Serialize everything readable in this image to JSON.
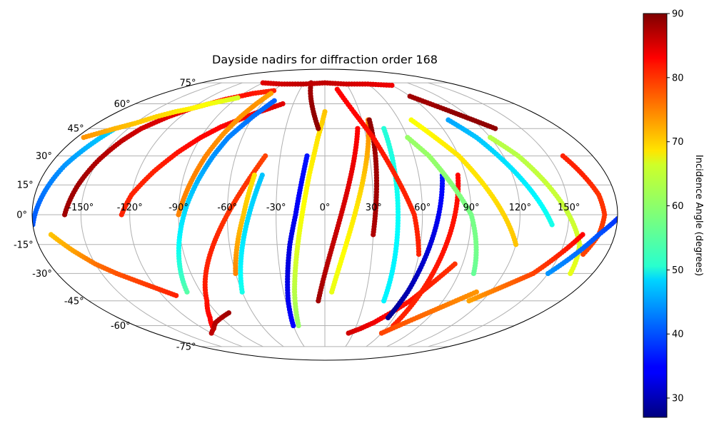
{
  "chart_data": {
    "type": "scatter",
    "projection": "mollweide",
    "title": "Dayside nadirs for diffraction order 168",
    "colorbar_label": "Incidence Angle (degrees)",
    "colorbar_range": [
      27,
      90
    ],
    "colorbar_ticks": [
      "30",
      "40",
      "50",
      "60",
      "70",
      "80",
      "90"
    ],
    "colormap": "jet",
    "lon_ticks": [
      "-150°",
      "-120°",
      "-90°",
      "-60°",
      "-30°",
      "0°",
      "30°",
      "60°",
      "90°",
      "120°",
      "150°"
    ],
    "lat_ticks": [
      "75°",
      "60°",
      "45°",
      "30°",
      "15°",
      "0°",
      "-15°",
      "-30°",
      "-45°",
      "-60°",
      "-75°"
    ],
    "grid": true,
    "tracks": [
      {
        "lon": [
          -170,
          -160,
          -150,
          -140,
          -130,
          -120,
          -110
        ],
        "lat": [
          -10,
          -18,
          -25,
          -30,
          -34,
          -38,
          -42
        ],
        "inc": [
          70,
          72,
          75,
          77,
          78,
          79,
          80
        ]
      },
      {
        "lon": [
          -180,
          -175,
          -170,
          -165,
          -160
        ],
        "lat": [
          -5,
          10,
          25,
          35,
          45
        ],
        "inc": [
          40,
          42,
          44,
          46,
          48
        ]
      },
      {
        "lon": [
          -160,
          -155,
          -150,
          -145,
          -140,
          -130,
          -120,
          -110,
          -100,
          -90,
          -80,
          -70,
          -60
        ],
        "lat": [
          0,
          15,
          28,
          38,
          45,
          52,
          57,
          60,
          63,
          65,
          67,
          68,
          69
        ],
        "inc": [
          88,
          88,
          87,
          86,
          85,
          84,
          83,
          82,
          82,
          81,
          81,
          80,
          80
        ]
      },
      {
        "lon": [
          -125,
          -120,
          -110,
          -100,
          -90,
          -80,
          -70,
          -60,
          -50,
          -40
        ],
        "lat": [
          0,
          10,
          22,
          32,
          40,
          46,
          50,
          54,
          57,
          60
        ],
        "inc": [
          80,
          80,
          80,
          81,
          82,
          82,
          83,
          83,
          84,
          84
        ]
      },
      {
        "lon": [
          -175,
          -160,
          -150,
          -140,
          -130,
          -120,
          -110,
          -100,
          -90
        ],
        "lat": [
          40,
          45,
          48,
          52,
          55,
          57,
          60,
          62,
          64
        ],
        "inc": [
          73,
          71,
          70,
          69,
          68,
          67,
          66,
          65,
          64
        ]
      },
      {
        "lon": [
          -100,
          -95,
          -90,
          -85,
          -80,
          -75,
          -70,
          -60,
          -50
        ],
        "lat": [
          -40,
          -25,
          -10,
          5,
          18,
          30,
          40,
          52,
          62
        ],
        "inc": [
          56,
          53,
          50,
          48,
          46,
          44,
          43,
          42,
          41
        ]
      },
      {
        "lon": [
          -110,
          -100,
          -90,
          -80,
          -70,
          -60,
          -50,
          -40
        ],
        "lat": [
          -62,
          -55,
          -45,
          -30,
          -15,
          0,
          15,
          30
        ],
        "inc": [
          82,
          82,
          81,
          80,
          80,
          79,
          79,
          78
        ]
      },
      {
        "lon": [
          -90,
          -85,
          -80,
          -75,
          -70,
          -65,
          -60
        ],
        "lat": [
          0,
          15,
          30,
          42,
          52,
          60,
          67
        ],
        "inc": [
          74,
          74,
          74,
          73,
          73,
          73,
          72
        ]
      },
      {
        "lon": [
          -60,
          -55,
          -50,
          -45
        ],
        "lat": [
          -30,
          -15,
          0,
          20
        ],
        "inc": [
          74,
          72,
          70,
          68
        ]
      },
      {
        "lon": [
          -60,
          -55,
          -50,
          -45,
          -40
        ],
        "lat": [
          -40,
          -25,
          -10,
          5,
          20
        ],
        "inc": [
          52,
          50,
          49,
          48,
          47
        ]
      },
      {
        "lon": [
          -30,
          -28,
          -25,
          -22,
          -18,
          -15,
          -12
        ],
        "lat": [
          -60,
          -45,
          -30,
          -15,
          0,
          15,
          30
        ],
        "inc": [
          35,
          34,
          33,
          33,
          34,
          35,
          36
        ]
      },
      {
        "lon": [
          -25,
          -22,
          -18,
          -14,
          -10,
          -5,
          0
        ],
        "lat": [
          -60,
          -40,
          -20,
          0,
          20,
          40,
          55
        ],
        "inc": [
          60,
          62,
          64,
          66,
          67,
          68,
          70
        ]
      },
      {
        "lon": [
          -20,
          -15,
          -10,
          -5
        ],
        "lat": [
          75,
          65,
          55,
          45
        ],
        "inc": [
          88,
          88,
          89,
          89
        ]
      },
      {
        "lon": [
          -5,
          0,
          5,
          10,
          15,
          20,
          25
        ],
        "lat": [
          -45,
          -30,
          -15,
          0,
          15,
          30,
          45
        ],
        "inc": [
          88,
          87,
          86,
          85,
          84,
          83,
          82
        ]
      },
      {
        "lon": [
          5,
          10,
          15,
          20,
          25,
          30,
          35
        ],
        "lat": [
          -40,
          -25,
          -10,
          5,
          20,
          35,
          50
        ],
        "inc": [
          65,
          66,
          67,
          68,
          70,
          72,
          74
        ]
      },
      {
        "lon": [
          30,
          32,
          34,
          36
        ],
        "lat": [
          -10,
          10,
          30,
          50
        ],
        "inc": [
          87,
          88,
          88,
          89
        ]
      },
      {
        "lon": [
          45,
          45,
          45,
          45,
          45
        ],
        "lat": [
          -45,
          -20,
          0,
          20,
          45
        ],
        "inc": [
          50,
          50,
          51,
          52,
          53
        ]
      },
      {
        "lon": [
          15,
          25,
          35,
          45,
          55,
          60
        ],
        "lat": [
          70,
          55,
          40,
          20,
          0,
          -20
        ],
        "inc": [
          82,
          82,
          81,
          80,
          80,
          80
        ]
      },
      {
        "lon": [
          25,
          35,
          45,
          55,
          65,
          75,
          85
        ],
        "lat": [
          -65,
          -62,
          -58,
          -52,
          -45,
          -35,
          -25
        ],
        "inc": [
          85,
          84,
          83,
          82,
          81,
          80,
          79
        ]
      },
      {
        "lon": [
          55,
          60,
          65,
          70,
          75
        ],
        "lat": [
          -55,
          -40,
          -20,
          0,
          20
        ],
        "inc": [
          28,
          30,
          32,
          34,
          36
        ]
      },
      {
        "lon": [
          65,
          70,
          75,
          80,
          85
        ],
        "lat": [
          -60,
          -40,
          -20,
          0,
          20
        ],
        "inc": [
          80,
          80,
          81,
          81,
          82
        ]
      },
      {
        "lon": [
          60,
          70,
          80,
          90,
          95,
          100
        ],
        "lat": [
          40,
          30,
          15,
          0,
          -15,
          -30
        ],
        "inc": [
          60,
          60,
          59,
          58,
          58,
          57
        ]
      },
      {
        "lon": [
          70,
          80,
          90,
          100,
          110,
          120
        ],
        "lat": [
          50,
          40,
          30,
          15,
          0,
          -15
        ],
        "inc": [
          66,
          67,
          68,
          68,
          69,
          70
        ]
      },
      {
        "lon": [
          100,
          110,
          120,
          130,
          140
        ],
        "lat": [
          50,
          40,
          25,
          10,
          -5
        ],
        "inc": [
          45,
          47,
          49,
          50,
          52
        ]
      },
      {
        "lon": [
          120,
          130,
          140,
          150,
          160,
          165
        ],
        "lat": [
          40,
          30,
          15,
          0,
          -15,
          -30
        ],
        "inc": [
          62,
          62,
          63,
          63,
          64,
          65
        ]
      },
      {
        "lon": [
          160,
          165,
          170,
          172,
          170,
          165
        ],
        "lat": [
          30,
          20,
          10,
          0,
          -10,
          -20
        ],
        "inc": [
          80,
          80,
          79,
          79,
          78,
          78
        ]
      },
      {
        "lon": [
          110,
          120,
          130,
          140,
          150,
          160
        ],
        "lat": [
          -45,
          -40,
          -35,
          -30,
          -20,
          -10
        ],
        "inc": [
          72,
          74,
          76,
          78,
          80,
          82
        ]
      },
      {
        "lon": [
          150,
          160,
          170,
          180
        ],
        "lat": [
          -30,
          -20,
          -10,
          -2
        ],
        "inc": [
          44,
          42,
          40,
          38
        ]
      },
      {
        "lon": [
          60,
          70,
          80,
          90,
          100,
          110
        ],
        "lat": [
          -65,
          -60,
          -55,
          -50,
          -45,
          -40
        ],
        "inc": [
          78,
          77,
          76,
          75,
          74,
          73
        ]
      },
      {
        "lon": [
          -120,
          -110,
          -100,
          -90,
          -80
        ],
        "lat": [
          -65,
          -62,
          -58,
          -55,
          -52
        ],
        "inc": [
          86,
          86,
          87,
          87,
          88
        ]
      },
      {
        "lon": [
          90,
          100,
          110,
          120,
          130
        ],
        "lat": [
          65,
          60,
          55,
          50,
          45
        ],
        "inc": [
          88,
          88,
          89,
          89,
          89
        ]
      },
      {
        "lon": [
          -90,
          -60,
          -30,
          0,
          30,
          60,
          90
        ],
        "lat": [
          75,
          74,
          74,
          75,
          74,
          74,
          73
        ],
        "inc": [
          84,
          85,
          86,
          86,
          85,
          84,
          83
        ]
      }
    ]
  }
}
